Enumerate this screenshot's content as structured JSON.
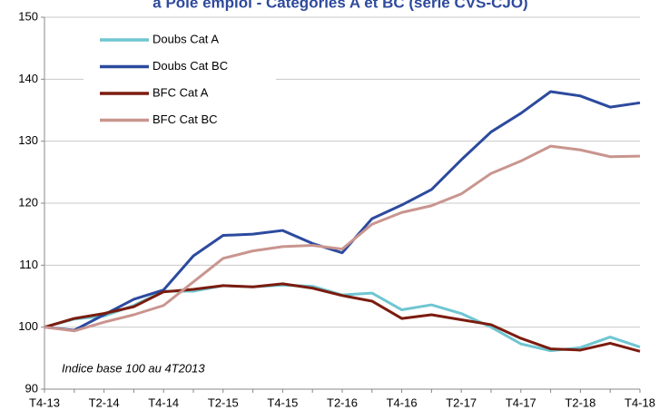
{
  "chart_data": {
    "type": "line",
    "title": "à Pôle emploi - Catégories A et BC (série CVS-CJO)",
    "annotation": "Indice base 100 au 4T2013",
    "categories": [
      "T4-13",
      null,
      "T2-14",
      null,
      "T4-14",
      null,
      "T2-15",
      null,
      "T4-15",
      null,
      "T2-16",
      null,
      "T4-16",
      null,
      "T2-17",
      null,
      "T4-17",
      null,
      "T2-18",
      null,
      "T4-18"
    ],
    "series": [
      {
        "name": "Doubs  Cat A",
        "color": "#6ec6d1",
        "values": [
          100,
          101.3,
          101.8,
          103.5,
          105.8,
          105.8,
          106.7,
          106.5,
          106.8,
          106.6,
          105.2,
          105.5,
          102.8,
          103.6,
          102.2,
          100,
          97.3,
          96.2,
          96.7,
          98.4,
          96.8
        ]
      },
      {
        "name": "Doubs  Cat BC",
        "color": "#2c4a9e",
        "values": [
          100,
          99.5,
          102,
          104.5,
          106,
          111.5,
          114.8,
          115,
          115.6,
          113.5,
          112,
          117.5,
          119.7,
          122.2,
          127,
          131.5,
          134.5,
          138,
          137.3,
          135.5,
          136.2
        ]
      },
      {
        "name": "BFC Cat A",
        "color": "#7b1c0f",
        "values": [
          100,
          101.4,
          102.2,
          103.3,
          105.7,
          106.1,
          106.7,
          106.5,
          107,
          106.3,
          105.1,
          104.2,
          101.4,
          102,
          101.2,
          100.4,
          98.2,
          96.5,
          96.3,
          97.4,
          96.1
        ]
      },
      {
        "name": "BFC Cat BC",
        "color": "#c9958f",
        "values": [
          100,
          99.4,
          100.8,
          102,
          103.5,
          107.3,
          111.1,
          112.3,
          113,
          113.2,
          112.6,
          116.6,
          118.5,
          119.6,
          121.5,
          124.8,
          126.8,
          129.2,
          128.6,
          127.5,
          127.6
        ]
      }
    ],
    "ylim": [
      90,
      150
    ],
    "yticks": [
      90,
      100,
      110,
      120,
      130,
      140,
      150
    ],
    "grid": true
  }
}
